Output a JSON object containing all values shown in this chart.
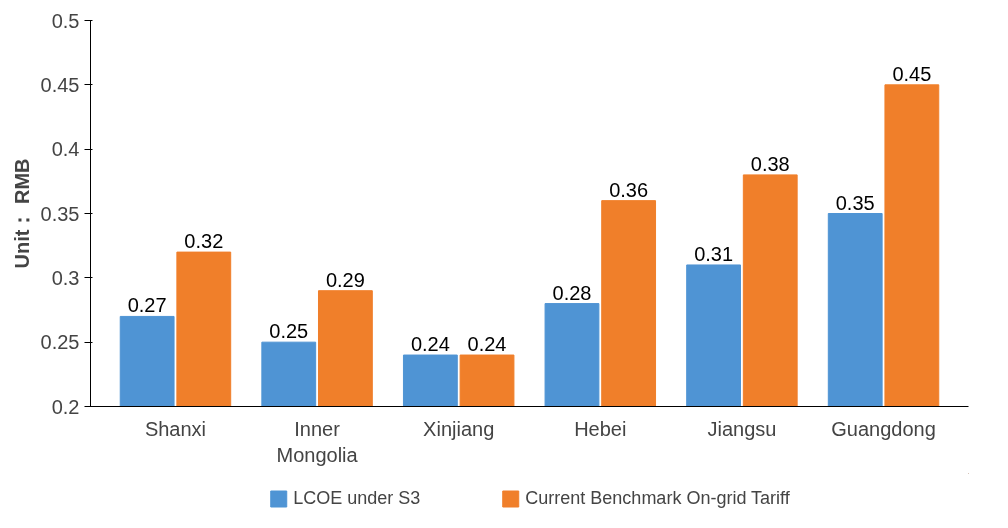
{
  "chart_data": {
    "type": "bar",
    "ylabel": "Unit： RMB",
    "categories": [
      "Shanxi",
      "Inner Mongolia",
      "Xinjiang",
      "Hebei",
      "Jiangsu",
      "Guangdong"
    ],
    "series": [
      {
        "name": "LCOE under S3",
        "color": "#4f94d4",
        "values": [
          0.27,
          0.25,
          0.24,
          0.28,
          0.31,
          0.35
        ]
      },
      {
        "name": "Current Benchmark On-grid Tariff",
        "color": "#f07f2a",
        "values": [
          0.32,
          0.29,
          0.24,
          0.36,
          0.38,
          0.45
        ]
      }
    ],
    "ylim": [
      0.2,
      0.5
    ],
    "yticks": [
      0.2,
      0.25,
      0.3,
      0.35,
      0.4,
      0.45,
      0.5
    ],
    "data_labels": true,
    "grid": false,
    "legend": "bottom"
  }
}
